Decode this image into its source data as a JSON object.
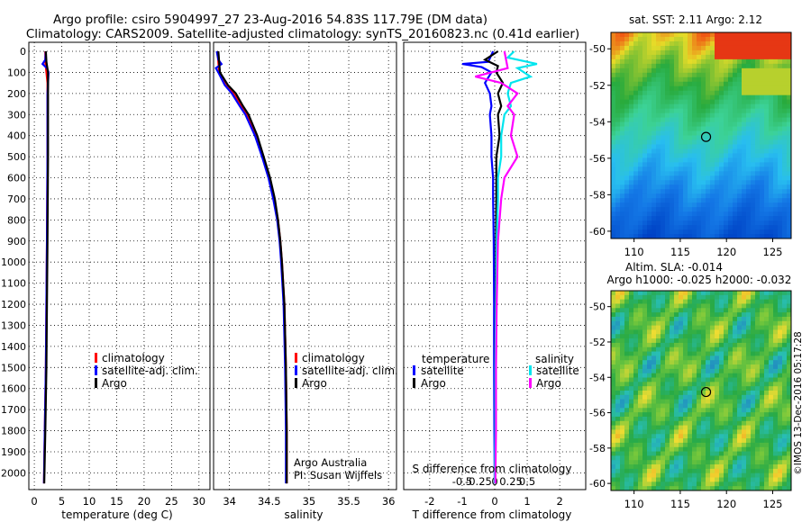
{
  "title": {
    "line1": "Argo profile: csiro 5904997_27 23-Aug-2016 54.83S 117.79E (DM data)",
    "line2": "Climatology: CARS2009. Satellite-adjusted climatology: synTS_20160823.nc (0.41d earlier)"
  },
  "colors": {
    "climatology": "#ff0000",
    "satellite_adj": "#0000ff",
    "argo": "#000000",
    "sat_salinity": "#00e5ee",
    "argo_salinity": "#ff00ff"
  },
  "legend": {
    "climatology": "climatology",
    "satellite_adj": "satellite-adj. clim.",
    "argo": "Argo",
    "diff_temperature_header": "temperature",
    "diff_salinity_header": "salinity",
    "satellite": "satellite"
  },
  "credits": {
    "line1": "Argo Australia",
    "line2": "PI: Susan Wijffels"
  },
  "depth_ticks": [
    "0",
    "100",
    "200",
    "300",
    "400",
    "500",
    "600",
    "700",
    "800",
    "900",
    "1000",
    "1100",
    "1200",
    "1300",
    "1400",
    "1500",
    "1600",
    "1700",
    "1800",
    "1900",
    "2000"
  ],
  "map_sst": {
    "title": "sat. SST: 2.11  Argo: 2.12",
    "lat_ticks": [
      "-50",
      "-52",
      "-54",
      "-56",
      "-58",
      "-60"
    ],
    "lon_ticks": [
      "110",
      "115",
      "120",
      "125"
    ],
    "profile_lon": 117.79,
    "profile_lat": -54.83
  },
  "map_sla": {
    "title_line1": "Altim. SLA: -0.014",
    "title_line2": "Argo h1000: -0.025  h2000: -0.032",
    "lat_ticks": [
      "-50",
      "-52",
      "-54",
      "-56",
      "-58",
      "-60"
    ],
    "lon_ticks": [
      "110",
      "115",
      "120",
      "125"
    ],
    "profile_lon": 117.79,
    "profile_lat": -54.83
  },
  "imos_stamp": "©IMOS 13-Dec-2016 05:17:28",
  "chart_data": [
    {
      "type": "line",
      "name": "temperature",
      "xlabel": "temperature (deg C)",
      "ylabel": "",
      "xlim": [
        -1,
        32
      ],
      "ylim": [
        2060,
        -30
      ],
      "x_ticks": [
        "0",
        "5",
        "10",
        "15",
        "20",
        "25",
        "30"
      ],
      "series": [
        {
          "name": "climatology",
          "depth": [
            0,
            50,
            100,
            150,
            200,
            300,
            500,
            700,
            900,
            1200,
            1500,
            1800,
            2050
          ],
          "values": [
            2.0,
            2.0,
            2.2,
            2.4,
            2.4,
            2.4,
            2.4,
            2.35,
            2.3,
            2.2,
            2.1,
            1.9,
            1.75
          ]
        },
        {
          "name": "satellite-adj. clim.",
          "depth": [
            0,
            40,
            60,
            80,
            100,
            150,
            200,
            300,
            500,
            700,
            900,
            1200,
            1500,
            1800,
            2050
          ],
          "values": [
            2.1,
            2.0,
            1.5,
            2.3,
            2.6,
            2.5,
            2.4,
            2.4,
            2.4,
            2.35,
            2.3,
            2.2,
            2.1,
            1.9,
            1.75
          ]
        },
        {
          "name": "Argo",
          "depth": [
            0,
            50,
            100,
            150,
            200,
            300,
            500,
            700,
            900,
            1200,
            1500,
            1800,
            2050
          ],
          "values": [
            2.1,
            2.2,
            2.5,
            2.5,
            2.5,
            2.5,
            2.5,
            2.45,
            2.4,
            2.3,
            2.2,
            2.0,
            1.8
          ]
        }
      ]
    },
    {
      "type": "line",
      "name": "salinity",
      "xlabel": "salinity",
      "xlim": [
        33.8,
        36.1
      ],
      "ylim": [
        2060,
        -30
      ],
      "x_ticks": [
        "34",
        "34.5",
        "35",
        "35.5",
        "36"
      ],
      "series": [
        {
          "name": "climatology",
          "depth": [
            0,
            100,
            160,
            200,
            260,
            300,
            400,
            500,
            600,
            700,
            800,
            900,
            1000,
            1200,
            1500,
            1800,
            2050
          ],
          "values": [
            33.85,
            33.87,
            33.95,
            34.05,
            34.15,
            34.22,
            34.33,
            34.42,
            34.5,
            34.56,
            34.61,
            34.64,
            34.66,
            34.69,
            34.71,
            34.72,
            34.72
          ]
        },
        {
          "name": "satellite-adj. clim.",
          "depth": [
            0,
            40,
            60,
            80,
            100,
            160,
            200,
            260,
            300,
            400,
            500,
            600,
            700,
            800,
            900,
            1000,
            1200,
            1500,
            1800,
            2050
          ],
          "values": [
            33.84,
            33.86,
            33.9,
            33.83,
            33.86,
            33.94,
            34.03,
            34.13,
            34.2,
            34.32,
            34.41,
            34.49,
            34.55,
            34.6,
            34.63,
            34.65,
            34.68,
            34.7,
            34.71,
            34.71
          ]
        },
        {
          "name": "Argo",
          "depth": [
            0,
            100,
            160,
            200,
            260,
            300,
            400,
            500,
            600,
            700,
            800,
            900,
            1000,
            1200,
            1500,
            1800,
            2050
          ],
          "values": [
            33.86,
            33.88,
            33.98,
            34.08,
            34.17,
            34.24,
            34.35,
            34.43,
            34.51,
            34.57,
            34.61,
            34.64,
            34.66,
            34.69,
            34.71,
            34.72,
            34.72
          ]
        }
      ]
    },
    {
      "type": "line",
      "name": "difference",
      "xlabel": "T difference from climatology",
      "salinity_axis_label": "S difference from climatology",
      "xlim": [
        -2.8,
        2.8
      ],
      "ylim": [
        2060,
        -30
      ],
      "x_ticks": [
        "-2",
        "-1",
        "0",
        "1",
        "2"
      ],
      "s_ticks": [
        "-0.5",
        "-0.25",
        "0",
        "0.25",
        "0.5"
      ],
      "series": [
        {
          "name": "temperature satellite",
          "depth": [
            0,
            50,
            60,
            75,
            100,
            150,
            200,
            260,
            300,
            400,
            500,
            600,
            700,
            900,
            1200,
            1500,
            1800,
            2050
          ],
          "values": [
            -0.05,
            -0.2,
            -1.0,
            -0.4,
            -0.1,
            -0.3,
            -0.15,
            -0.1,
            -0.15,
            -0.1,
            -0.1,
            -0.05,
            -0.05,
            -0.03,
            -0.02,
            -0.02,
            -0.01,
            0.0
          ]
        },
        {
          "name": "temperature Argo",
          "depth": [
            0,
            40,
            70,
            100,
            150,
            200,
            260,
            300,
            400,
            500,
            600,
            700,
            900,
            1200,
            1500,
            1800,
            2050
          ],
          "values": [
            0.1,
            -0.3,
            0.1,
            0.05,
            0.25,
            0.1,
            0.2,
            0.1,
            0.15,
            0.05,
            0.05,
            0.05,
            0.04,
            0.03,
            0.02,
            0.02,
            0.01
          ]
        },
        {
          "name": "salinity satellite",
          "depth": [
            0,
            30,
            60,
            80,
            120,
            150,
            200,
            260,
            300,
            400,
            500,
            600,
            700,
            900,
            1200,
            1500,
            1800,
            2050
          ],
          "values": [
            0.3,
            0.2,
            0.65,
            0.35,
            0.55,
            0.25,
            0.2,
            0.25,
            0.15,
            0.1,
            0.1,
            0.05,
            0.05,
            0.03,
            0.02,
            0.01,
            0.01,
            0.0
          ]
        },
        {
          "name": "salinity Argo",
          "depth": [
            0,
            80,
            120,
            150,
            200,
            260,
            300,
            400,
            500,
            600,
            700,
            900,
            1200,
            1500,
            1800,
            2050
          ],
          "values": [
            0.15,
            0.2,
            -0.3,
            0.1,
            0.35,
            0.2,
            0.3,
            0.25,
            0.35,
            0.15,
            0.1,
            0.05,
            0.03,
            0.02,
            0.02,
            0.01
          ]
        }
      ]
    }
  ]
}
